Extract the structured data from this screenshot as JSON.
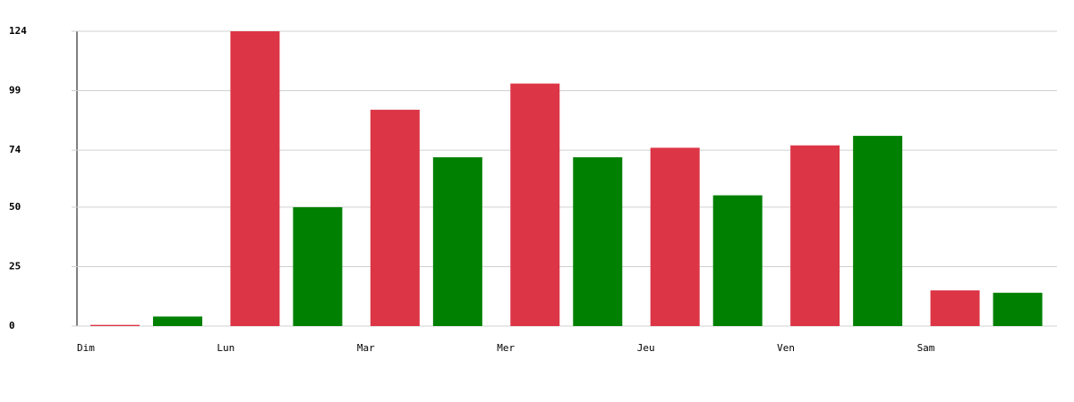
{
  "chart_data": {
    "type": "bar",
    "categories": [
      "Dim",
      "Lun",
      "Mar",
      "Mer",
      "Jeu",
      "Ven",
      "Sam"
    ],
    "series": [
      {
        "color": "#dc3545",
        "values": [
          0.5,
          124,
          91,
          102,
          75,
          76,
          15
        ]
      },
      {
        "color": "#008000",
        "values": [
          4,
          50,
          71,
          71,
          55,
          80,
          14
        ]
      }
    ],
    "ylim": [
      0,
      124
    ],
    "yticks": [
      0,
      25,
      50,
      74,
      99,
      124
    ],
    "grid": true
  }
}
